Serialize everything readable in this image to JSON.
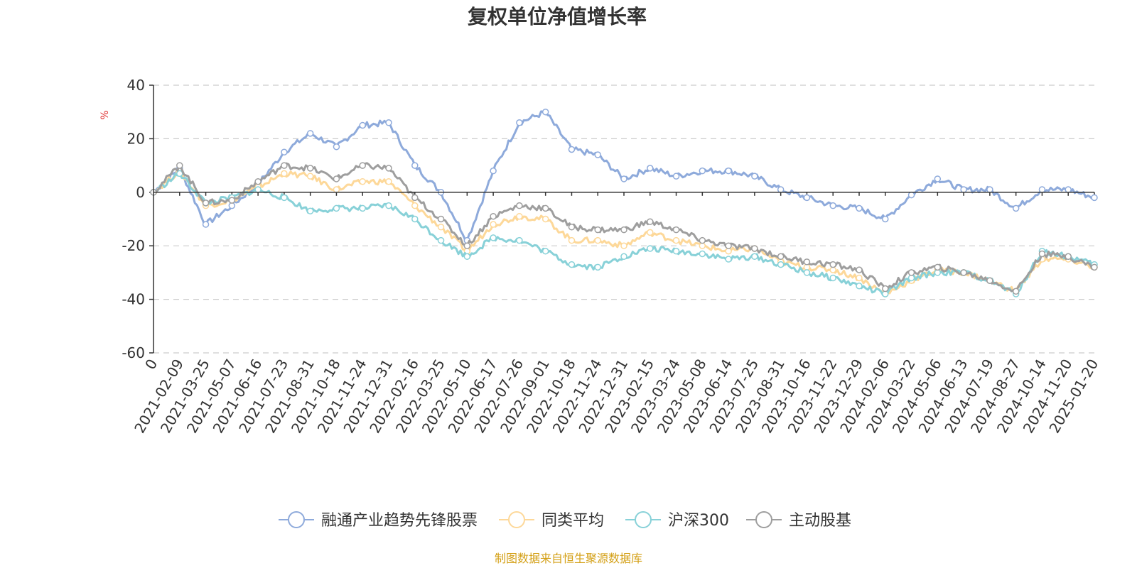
{
  "chart_data": {
    "type": "line",
    "title": "复权单位净值增长率",
    "ylabel": "%",
    "xlabel": "",
    "ylim": [
      -60,
      40
    ],
    "yticks": [
      40,
      20,
      0,
      -20,
      -40,
      -60
    ],
    "categories": [
      "0",
      "2021-02-09",
      "2021-03-25",
      "2021-05-07",
      "2021-06-16",
      "2021-07-23",
      "2021-08-31",
      "2021-10-18",
      "2021-11-24",
      "2021-12-31",
      "2022-02-16",
      "2022-03-25",
      "2022-05-10",
      "2022-06-17",
      "2022-07-26",
      "2022-09-01",
      "2022-10-18",
      "2022-11-24",
      "2022-12-31",
      "2023-02-15",
      "2023-03-24",
      "2023-05-08",
      "2023-06-14",
      "2023-07-25",
      "2023-08-31",
      "2023-10-16",
      "2023-11-22",
      "2023-12-29",
      "2024-02-06",
      "2024-03-22",
      "2024-05-06",
      "2024-06-13",
      "2024-07-19",
      "2024-08-27",
      "2024-10-14",
      "2024-11-20",
      "2025-01-20"
    ],
    "grid": true,
    "legend_position": "bottom-center",
    "series": [
      {
        "name": "融通产业趋势先锋股票",
        "color": "#8eaadb",
        "values": [
          0,
          9,
          -12,
          -5,
          3,
          15,
          22,
          17,
          25,
          26,
          10,
          0,
          -18,
          8,
          26,
          30,
          16,
          14,
          5,
          9,
          6,
          8,
          8,
          6,
          1,
          -2,
          -5,
          -6,
          -10,
          -1,
          5,
          1,
          1,
          -6,
          1,
          1,
          -2
        ]
      },
      {
        "name": "同类平均",
        "color": "#fdd899",
        "values": [
          0,
          8,
          -5,
          -3,
          2,
          7,
          6,
          1,
          4,
          4,
          -5,
          -13,
          -22,
          -12,
          -9,
          -10,
          -18,
          -18,
          -20,
          -15,
          -18,
          -20,
          -22,
          -21,
          -26,
          -28,
          -29,
          -32,
          -38,
          -33,
          -29,
          -30,
          -33,
          -37,
          -25,
          -25,
          -28
        ]
      },
      {
        "name": "沪深300",
        "color": "#88d1d8",
        "values": [
          0,
          7,
          -4,
          -2,
          1,
          -2,
          -7,
          -6,
          -6,
          -5,
          -10,
          -18,
          -24,
          -17,
          -18,
          -22,
          -27,
          -28,
          -24,
          -21,
          -22,
          -23,
          -25,
          -24,
          -27,
          -30,
          -32,
          -35,
          -38,
          -32,
          -30,
          -30,
          -33,
          -38,
          -22,
          -24,
          -27
        ]
      },
      {
        "name": "主动股基",
        "color": "#9e9e9e",
        "values": [
          0,
          10,
          -4,
          -3,
          4,
          10,
          9,
          5,
          10,
          9,
          -2,
          -10,
          -20,
          -9,
          -5,
          -6,
          -13,
          -14,
          -14,
          -11,
          -14,
          -18,
          -20,
          -21,
          -24,
          -26,
          -27,
          -29,
          -36,
          -30,
          -28,
          -30,
          -33,
          -37,
          -23,
          -24,
          -28
        ]
      }
    ]
  },
  "legend": [
    {
      "label": "融通产业趋势先锋股票",
      "color": "#8eaadb"
    },
    {
      "label": "同类平均",
      "color": "#fdd899"
    },
    {
      "label": "沪深300",
      "color": "#88d1d8"
    },
    {
      "label": "主动股基",
      "color": "#9e9e9e"
    }
  ],
  "source": "制图数据来自恒生聚源数据库"
}
